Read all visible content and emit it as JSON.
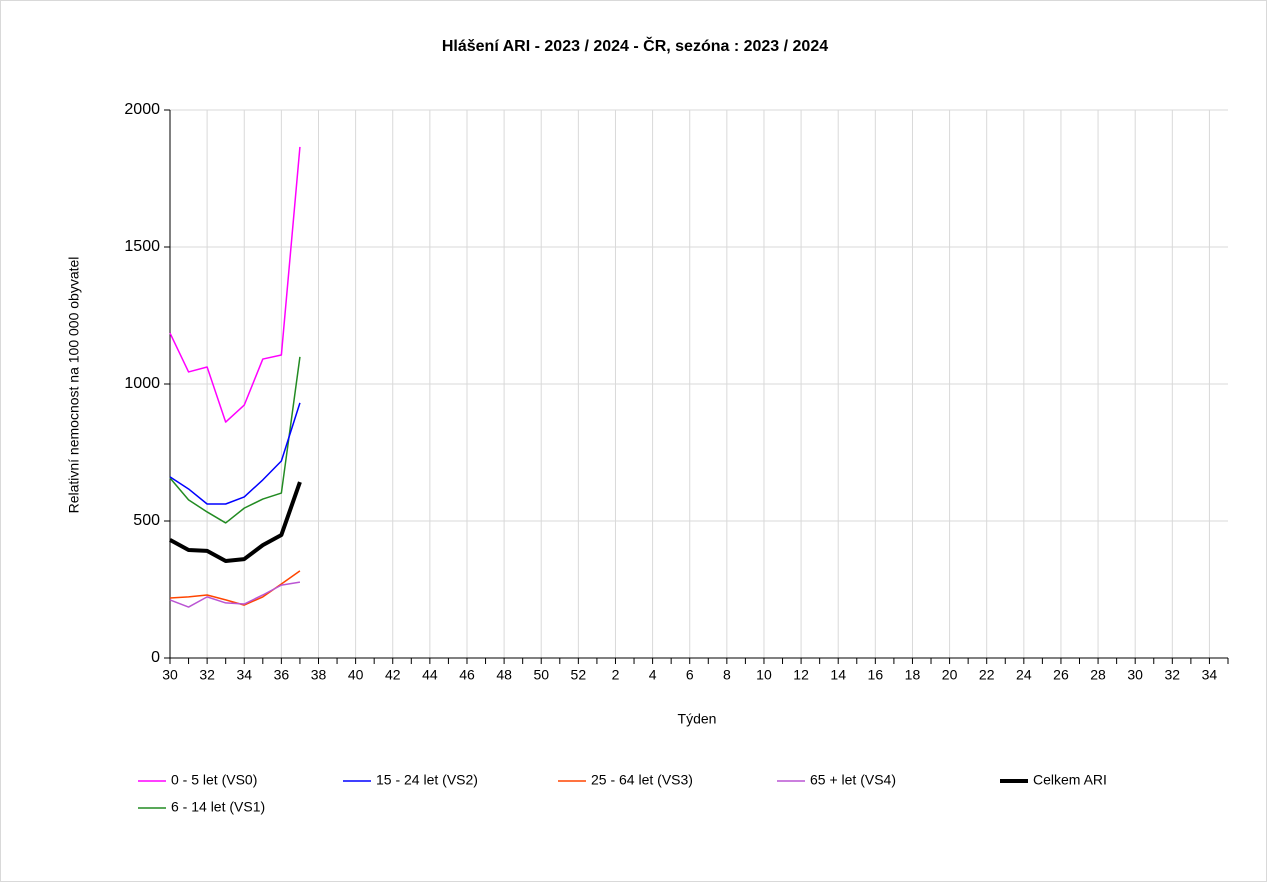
{
  "chart_data": {
    "type": "line",
    "title": "Hlášení ARI - 2023 / 2024 - ČR, sezóna : 2023 / 2024",
    "x_label": "Týden",
    "y_label": "Relativní nemocnost na 100 000 obyvatel",
    "categories": [
      "30",
      null,
      "32",
      null,
      "34",
      null,
      "36",
      null,
      "38",
      null,
      "40",
      null,
      "42",
      null,
      "44",
      null,
      "46",
      null,
      "48",
      null,
      "50",
      null,
      "52",
      null,
      "2",
      null,
      "4",
      null,
      "6",
      null,
      "8",
      null,
      "10",
      null,
      "12",
      null,
      "14",
      null,
      "16",
      null,
      "18",
      null,
      "20",
      null,
      "22",
      null,
      "24",
      null,
      "26",
      null,
      "28",
      null,
      "30",
      null,
      "32",
      null,
      "34",
      null
    ],
    "ylim": [
      0,
      2000
    ],
    "yticks": [
      0,
      500,
      1000,
      1500,
      2000
    ],
    "grid": true,
    "series": [
      {
        "name": "0 - 5 let (VS0)",
        "color": "#ff00ff",
        "width": 1.5,
        "values": [
          1186,
          1044,
          1062,
          861,
          923,
          1091,
          1106,
          1865,
          null,
          null,
          null,
          null,
          null,
          null,
          null,
          null,
          null,
          null,
          null,
          null,
          null,
          null,
          null,
          null,
          null,
          null,
          null,
          null,
          null,
          null,
          null,
          null,
          null,
          null,
          null,
          null,
          null,
          null,
          null,
          null,
          null,
          null,
          null,
          null,
          null,
          null,
          null,
          null,
          null,
          null,
          null,
          null,
          null,
          null,
          null,
          null,
          null,
          null
        ]
      },
      {
        "name": "6 - 14 let (VS1)",
        "color": "#228b22",
        "width": 1.5,
        "values": [
          657,
          577,
          533,
          493,
          547,
          580,
          602,
          1099,
          null,
          null,
          null,
          null,
          null,
          null,
          null,
          null,
          null,
          null,
          null,
          null,
          null,
          null,
          null,
          null,
          null,
          null,
          null,
          null,
          null,
          null,
          null,
          null,
          null,
          null,
          null,
          null,
          null,
          null,
          null,
          null,
          null,
          null,
          null,
          null,
          null,
          null,
          null,
          null,
          null,
          null,
          null,
          null,
          null,
          null,
          null,
          null,
          null,
          null
        ]
      },
      {
        "name": "15 - 24 let (VS2)",
        "color": "#0000ff",
        "width": 1.5,
        "values": [
          661,
          617,
          562,
          562,
          588,
          650,
          719,
          931,
          null,
          null,
          null,
          null,
          null,
          null,
          null,
          null,
          null,
          null,
          null,
          null,
          null,
          null,
          null,
          null,
          null,
          null,
          null,
          null,
          null,
          null,
          null,
          null,
          null,
          null,
          null,
          null,
          null,
          null,
          null,
          null,
          null,
          null,
          null,
          null,
          null,
          null,
          null,
          null,
          null,
          null,
          null,
          null,
          null,
          null,
          null,
          null,
          null,
          null
        ]
      },
      {
        "name": "25 - 64 let (VS3)",
        "color": "#ff4500",
        "width": 1.5,
        "values": [
          219,
          223,
          230,
          212,
          193,
          223,
          270,
          318,
          null,
          null,
          null,
          null,
          null,
          null,
          null,
          null,
          null,
          null,
          null,
          null,
          null,
          null,
          null,
          null,
          null,
          null,
          null,
          null,
          null,
          null,
          null,
          null,
          null,
          null,
          null,
          null,
          null,
          null,
          null,
          null,
          null,
          null,
          null,
          null,
          null,
          null,
          null,
          null,
          null,
          null,
          null,
          null,
          null,
          null,
          null,
          null,
          null,
          null
        ]
      },
      {
        "name": "65 + let (VS4)",
        "color": "#ba55d3",
        "width": 1.5,
        "values": [
          212,
          186,
          223,
          201,
          197,
          230,
          266,
          277,
          null,
          null,
          null,
          null,
          null,
          null,
          null,
          null,
          null,
          null,
          null,
          null,
          null,
          null,
          null,
          null,
          null,
          null,
          null,
          null,
          null,
          null,
          null,
          null,
          null,
          null,
          null,
          null,
          null,
          null,
          null,
          null,
          null,
          null,
          null,
          null,
          null,
          null,
          null,
          null,
          null,
          null,
          null,
          null,
          null,
          null,
          null,
          null,
          null,
          null
        ]
      },
      {
        "name": "Celkem ARI",
        "color": "#000000",
        "width": 4,
        "values": [
          431,
          394,
          391,
          354,
          361,
          412,
          449,
          642,
          null,
          null,
          null,
          null,
          null,
          null,
          null,
          null,
          null,
          null,
          null,
          null,
          null,
          null,
          null,
          null,
          null,
          null,
          null,
          null,
          null,
          null,
          null,
          null,
          null,
          null,
          null,
          null,
          null,
          null,
          null,
          null,
          null,
          null,
          null,
          null,
          null,
          null,
          null,
          null,
          null,
          null,
          null,
          null,
          null,
          null,
          null,
          null,
          null,
          null
        ]
      }
    ]
  }
}
